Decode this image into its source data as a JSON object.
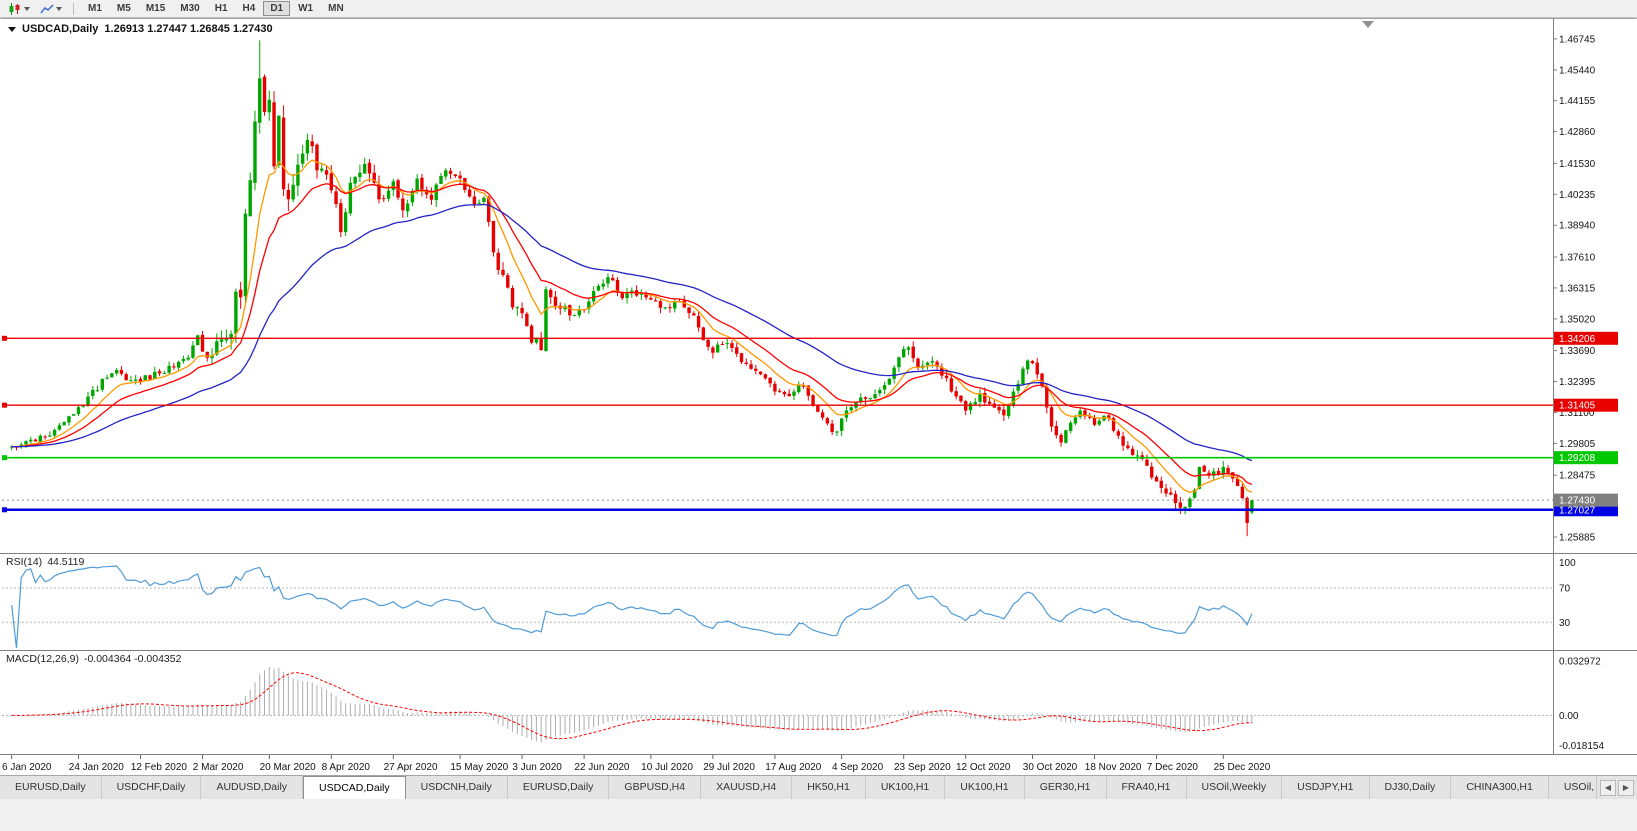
{
  "toolbar": {
    "timeframes": [
      "M1",
      "M5",
      "M15",
      "M30",
      "H1",
      "H4",
      "D1",
      "W1",
      "MN"
    ],
    "selected_timeframe": "D1"
  },
  "header": {
    "symbol": "USDCAD,Daily",
    "ohlc": "1.26913 1.27447 1.26845 1.27430"
  },
  "indicators": {
    "rsi": {
      "name": "RSI(14)",
      "value": "44.5119"
    },
    "macd": {
      "name": "MACD(12,26,9)",
      "values": "-0.004364 -0.004352"
    }
  },
  "tabs": {
    "items": [
      "EURUSD,Daily",
      "USDCHF,Daily",
      "AUDUSD,Daily",
      "USDCAD,Daily",
      "USDCNH,Daily",
      "EURUSD,Daily",
      "GBPUSD,H4",
      "XAUUSD,H4",
      "HK50,H1",
      "UK100,H1",
      "UK100,H1",
      "GER30,H1",
      "FRA40,H1",
      "USOil,Weekly",
      "USDJPY,H1",
      "DJ30,Daily",
      "CHINA300,H1",
      "USOil,"
    ],
    "active_index": 3,
    "scroll_left_icon": "left-arrow",
    "scroll_right_icon": "right-arrow"
  },
  "chart_data": {
    "type": "candlestick",
    "symbol": "USDCAD",
    "timeframe": "Daily",
    "title": "USDCAD,Daily",
    "last_ohlc": {
      "open": 1.26913,
      "high": 1.27447,
      "low": 1.26845,
      "close": 1.2743
    },
    "num_candles": 261,
    "seed": 20201231,
    "price_range": [
      1.253,
      1.4745
    ],
    "price_ticks": [
      1.46745,
      1.4544,
      1.44155,
      1.4286,
      1.4153,
      1.40235,
      1.3894,
      1.3761,
      1.36315,
      1.3502,
      1.3369,
      1.32395,
      1.311,
      1.29805,
      1.28475,
      1.25885
    ],
    "bid_price": 1.2743,
    "bid_flag_color": "#808080",
    "h_lines": [
      {
        "price": 1.34206,
        "color": "#E80000",
        "width": 1.4
      },
      {
        "price": 1.31405,
        "color": "#E80000",
        "width": 1.4
      },
      {
        "price": 1.29208,
        "color": "#00C800",
        "width": 1.6
      },
      {
        "price": 1.27027,
        "color": "#0000E0",
        "width": 2.6
      }
    ],
    "candle_colors": {
      "up": "#00A600",
      "down": "#E60000"
    },
    "moving_averages": [
      {
        "name": "ma-fast",
        "period": 9,
        "color": "#FF9900"
      },
      {
        "name": "ma-mid",
        "period": 18,
        "color": "#FF0000"
      },
      {
        "name": "ma-slow",
        "period": 45,
        "color": "#2424C8"
      }
    ],
    "close_path_anchors": [
      [
        0,
        1.2965
      ],
      [
        4,
        1.299
      ],
      [
        9,
        1.3035
      ],
      [
        14,
        1.312
      ],
      [
        19,
        1.324
      ],
      [
        22,
        1.3295
      ],
      [
        25,
        1.324
      ],
      [
        27,
        1.3245
      ],
      [
        32,
        1.329
      ],
      [
        37,
        1.333
      ],
      [
        39,
        1.343
      ],
      [
        41,
        1.333
      ],
      [
        43,
        1.339
      ],
      [
        45,
        1.342
      ],
      [
        46,
        1.342
      ],
      [
        47,
        1.365
      ],
      [
        48,
        1.358
      ],
      [
        49,
        1.394
      ],
      [
        50,
        1.412
      ],
      [
        51,
        1.428
      ],
      [
        52,
        1.45
      ],
      [
        53,
        1.434
      ],
      [
        54,
        1.444
      ],
      [
        55,
        1.418
      ],
      [
        56,
        1.436
      ],
      [
        57,
        1.409
      ],
      [
        58,
        1.399
      ],
      [
        60,
        1.418
      ],
      [
        62,
        1.428
      ],
      [
        64,
        1.415
      ],
      [
        66,
        1.408
      ],
      [
        67,
        1.402
      ],
      [
        69,
        1.389
      ],
      [
        71,
        1.405
      ],
      [
        74,
        1.417
      ],
      [
        77,
        1.4
      ],
      [
        80,
        1.406
      ],
      [
        82,
        1.394
      ],
      [
        85,
        1.408
      ],
      [
        88,
        1.402
      ],
      [
        91,
        1.411
      ],
      [
        94,
        1.41
      ],
      [
        97,
        1.398
      ],
      [
        99,
        1.399
      ],
      [
        101,
        1.378
      ],
      [
        104,
        1.361
      ],
      [
        107,
        1.35
      ],
      [
        109,
        1.342
      ],
      [
        111,
        1.339
      ],
      [
        112,
        1.3616
      ],
      [
        115,
        1.354
      ],
      [
        118,
        1.353
      ],
      [
        120,
        1.355
      ],
      [
        123,
        1.363
      ],
      [
        125,
        1.368
      ],
      [
        128,
        1.358
      ],
      [
        130,
        1.361
      ],
      [
        134,
        1.359
      ],
      [
        137,
        1.354
      ],
      [
        140,
        1.358
      ],
      [
        143,
        1.35
      ],
      [
        145,
        1.342
      ],
      [
        147,
        1.336
      ],
      [
        149,
        1.341
      ],
      [
        151,
        1.339
      ],
      [
        154,
        1.33
      ],
      [
        157,
        1.326
      ],
      [
        160,
        1.321
      ],
      [
        163,
        1.319
      ],
      [
        166,
        1.322
      ],
      [
        169,
        1.312
      ],
      [
        171,
        1.305
      ],
      [
        173,
        1.302
      ],
      [
        174,
        1.309
      ],
      [
        177,
        1.315
      ],
      [
        180,
        1.318
      ],
      [
        183,
        1.323
      ],
      [
        186,
        1.333
      ],
      [
        188,
        1.339
      ],
      [
        190,
        1.331
      ],
      [
        193,
        1.332
      ],
      [
        195,
        1.328
      ],
      [
        198,
        1.318
      ],
      [
        200,
        1.313
      ],
      [
        203,
        1.319
      ],
      [
        205,
        1.314
      ],
      [
        208,
        1.31
      ],
      [
        210,
        1.318
      ],
      [
        212,
        1.33
      ],
      [
        214,
        1.332
      ],
      [
        216,
        1.322
      ],
      [
        218,
        1.306
      ],
      [
        220,
        1.299
      ],
      [
        222,
        1.306
      ],
      [
        224,
        1.313
      ],
      [
        227,
        1.307
      ],
      [
        230,
        1.309
      ],
      [
        232,
        1.3
      ],
      [
        235,
        1.293
      ],
      [
        238,
        1.289
      ],
      [
        240,
        1.281
      ],
      [
        242,
        1.278
      ],
      [
        244,
        1.272
      ],
      [
        246,
        1.27
      ],
      [
        248,
        1.279
      ],
      [
        249,
        1.288
      ],
      [
        251,
        1.285
      ],
      [
        254,
        1.287
      ],
      [
        256,
        1.283
      ],
      [
        258,
        1.276
      ],
      [
        259,
        1.266
      ],
      [
        260,
        1.2743
      ]
    ],
    "volatility_anchors": [
      [
        0,
        0.0035
      ],
      [
        40,
        0.0045
      ],
      [
        46,
        0.009
      ],
      [
        52,
        0.016
      ],
      [
        56,
        0.014
      ],
      [
        62,
        0.01
      ],
      [
        70,
        0.008
      ],
      [
        80,
        0.007
      ],
      [
        94,
        0.006
      ],
      [
        104,
        0.008
      ],
      [
        112,
        0.007
      ],
      [
        120,
        0.005
      ],
      [
        134,
        0.0045
      ],
      [
        147,
        0.005
      ],
      [
        160,
        0.004
      ],
      [
        174,
        0.0045
      ],
      [
        187,
        0.005
      ],
      [
        200,
        0.0045
      ],
      [
        214,
        0.0055
      ],
      [
        227,
        0.0045
      ],
      [
        240,
        0.0045
      ],
      [
        249,
        0.006
      ],
      [
        260,
        0.004
      ]
    ],
    "extremes": [
      {
        "index": 52,
        "high": 1.4668
      },
      {
        "index": 259,
        "low": 1.2592
      }
    ],
    "date_labels": [
      {
        "i": 0,
        "t": "6 Jan 2020"
      },
      {
        "i": 14,
        "t": "24 Jan 2020"
      },
      {
        "i": 27,
        "t": "12 Feb 2020"
      },
      {
        "i": 40,
        "t": "2 Mar 2020"
      },
      {
        "i": 54,
        "t": "20 Mar 2020"
      },
      {
        "i": 67,
        "t": "8 Apr 2020"
      },
      {
        "i": 80,
        "t": "27 Apr 2020"
      },
      {
        "i": 94,
        "t": "15 May 2020"
      },
      {
        "i": 107,
        "t": "3 Jun 2020"
      },
      {
        "i": 120,
        "t": "22 Jun 2020"
      },
      {
        "i": 134,
        "t": "10 Jul 2020"
      },
      {
        "i": 147,
        "t": "29 Jul 2020"
      },
      {
        "i": 160,
        "t": "17 Aug 2020"
      },
      {
        "i": 174,
        "t": "4 Sep 2020"
      },
      {
        "i": 187,
        "t": "23 Sep 2020"
      },
      {
        "i": 200,
        "t": "12 Oct 2020"
      },
      {
        "i": 214,
        "t": "30 Oct 2020"
      },
      {
        "i": 227,
        "t": "18 Nov 2020"
      },
      {
        "i": 240,
        "t": "7 Dec 2020"
      },
      {
        "i": 254,
        "t": "25 Dec 2020"
      }
    ],
    "rsi": {
      "period": 14,
      "color": "#4F9BD8",
      "range": [
        0,
        105
      ],
      "levels": [
        70,
        30
      ],
      "axis_labels": [
        {
          "v": 100,
          "t": "100"
        },
        {
          "v": 70,
          "t": "70"
        },
        {
          "v": 30,
          "t": "30"
        }
      ],
      "display_value": 44.5119
    },
    "macd": {
      "fast": 12,
      "slow": 26,
      "signal_period": 9,
      "range": [
        -0.0215,
        0.0365
      ],
      "axis_labels": [
        {
          "v": 0.032972,
          "t": "0.032972"
        },
        {
          "v": 0,
          "t": "0.00"
        },
        {
          "v": -0.018154,
          "t": "-0.018154"
        }
      ],
      "histogram_color": "#ADADAD",
      "signal_color": "#FF0000",
      "display_values": [
        -0.004364,
        -0.004352
      ]
    }
  }
}
